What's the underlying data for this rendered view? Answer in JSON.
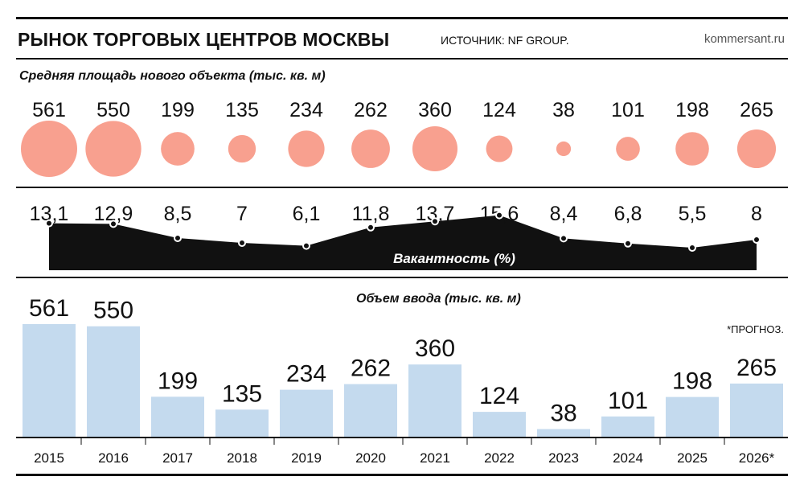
{
  "header": {
    "title": "РЫНОК ТОРГОВЫХ ЦЕНТРОВ МОСКВЫ",
    "source": "ИСТОЧНИК: NF GROUP.",
    "site": "kommersant.ru"
  },
  "forecast_note": "*ПРОГНОЗ.",
  "colors": {
    "circle": "#f8a08f",
    "bar": "#c4daee",
    "vacancy_area": "#111111",
    "text": "#111111"
  },
  "chart_data": [
    {
      "type": "scatter",
      "title": "Средняя площадь нового объекта (тыс. кв. м)",
      "categories": [
        "2015",
        "2016",
        "2017",
        "2018",
        "2019",
        "2020",
        "2021",
        "2022",
        "2023",
        "2024",
        "2025",
        "2026*"
      ],
      "values": [
        561,
        550,
        199,
        135,
        234,
        262,
        360,
        124,
        38,
        101,
        198,
        265
      ],
      "labels": [
        "561",
        "550",
        "199",
        "135",
        "234",
        "262",
        "360",
        "124",
        "38",
        "101",
        "198",
        "265"
      ]
    },
    {
      "type": "area",
      "title": "Вакантность (%)",
      "categories": [
        "2015",
        "2016",
        "2017",
        "2018",
        "2019",
        "2020",
        "2021",
        "2022",
        "2023",
        "2024",
        "2025",
        "2026*"
      ],
      "values": [
        13.1,
        12.9,
        8.5,
        7,
        6.1,
        11.8,
        13.7,
        15.6,
        8.4,
        6.8,
        5.5,
        8
      ],
      "labels": [
        "13,1",
        "12,9",
        "8,5",
        "7",
        "6,1",
        "11,8",
        "13,7",
        "15,6",
        "8,4",
        "6,8",
        "5,5",
        "8"
      ]
    },
    {
      "type": "bar",
      "title": "Объем ввода (тыс. кв. м)",
      "categories": [
        "2015",
        "2016",
        "2017",
        "2018",
        "2019",
        "2020",
        "2021",
        "2022",
        "2023",
        "2024",
        "2025",
        "2026*"
      ],
      "values": [
        561,
        550,
        199,
        135,
        234,
        262,
        360,
        124,
        38,
        101,
        198,
        265
      ],
      "labels": [
        "561",
        "550",
        "199",
        "135",
        "234",
        "262",
        "360",
        "124",
        "38",
        "101",
        "198",
        "265"
      ]
    }
  ]
}
